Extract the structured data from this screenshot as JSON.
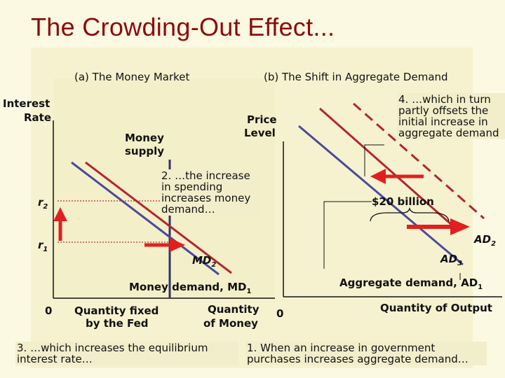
{
  "title": "The Crowding-Out Effect...",
  "panel_a": {
    "subtitle": "(a) The Money Market",
    "y_axis_label": [
      "Interest",
      "Rate"
    ],
    "money_supply_label": [
      "Money",
      "supply"
    ],
    "r2": {
      "base": "r",
      "sub": "2"
    },
    "r1": {
      "base": "r",
      "sub": "1"
    },
    "md2": {
      "base": "MD",
      "sub": "2"
    },
    "md1": {
      "base": "Money demand, MD",
      "sub": "1"
    },
    "origin": "0",
    "fixed_label": [
      "Quantity fixed",
      "by the Fed"
    ],
    "x_axis_label": [
      "Quantity",
      "of Money"
    ]
  },
  "panel_b": {
    "subtitle": "(b) The Shift in Aggregate Demand",
    "y_axis_label": [
      "Price",
      "Level"
    ],
    "shift_label": "$20 billion",
    "ad2": {
      "base": "AD",
      "sub": "2"
    },
    "ad3": {
      "base": "AD",
      "sub": "3"
    },
    "ad1": {
      "base": "Aggregate demand, AD",
      "sub": "1"
    },
    "origin": "0",
    "x_axis_label": "Quantity of Output"
  },
  "notes": {
    "money_demand": [
      "2. …the increase",
      "in spending",
      "increases money",
      "demand…"
    ],
    "interest_rate": [
      "3. …which increases the equilibrium",
      "interest rate…"
    ],
    "offset": [
      "4. …which in turn",
      "partly offsets the",
      "initial increase in",
      "aggregate demand"
    ],
    "government_purchases": [
      "1. When an increase in government",
      "purchases increases aggregate demand…"
    ]
  }
}
